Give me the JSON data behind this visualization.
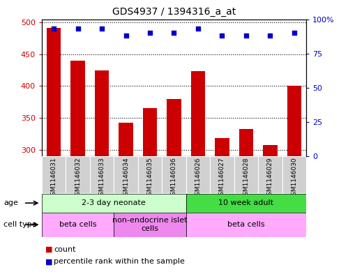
{
  "title": "GDS4937 / 1394316_a_at",
  "samples": [
    "GSM1146031",
    "GSM1146032",
    "GSM1146033",
    "GSM1146034",
    "GSM1146035",
    "GSM1146036",
    "GSM1146026",
    "GSM1146027",
    "GSM1146028",
    "GSM1146029",
    "GSM1146030"
  ],
  "counts": [
    491,
    440,
    425,
    342,
    365,
    380,
    424,
    318,
    333,
    308,
    400
  ],
  "percentiles": [
    93,
    93,
    93,
    88,
    90,
    90,
    93,
    88,
    88,
    88,
    90
  ],
  "ylim_left": [
    290,
    505
  ],
  "ylim_right": [
    0,
    100
  ],
  "yticks_left": [
    300,
    350,
    400,
    450,
    500
  ],
  "yticks_right": [
    0,
    25,
    50,
    75,
    100
  ],
  "bar_color": "#cc0000",
  "scatter_color": "#0000cc",
  "age_groups": [
    {
      "label": "2-3 day neonate",
      "start": 0,
      "end": 6,
      "color": "#ccffcc"
    },
    {
      "label": "10 week adult",
      "start": 6,
      "end": 11,
      "color": "#44dd44"
    }
  ],
  "cell_type_groups": [
    {
      "label": "beta cells",
      "start": 0,
      "end": 3,
      "color": "#ffaaff"
    },
    {
      "label": "non-endocrine islet\ncells",
      "start": 3,
      "end": 6,
      "color": "#ee88ee"
    },
    {
      "label": "beta cells",
      "start": 6,
      "end": 11,
      "color": "#ffaaff"
    }
  ],
  "sample_bg_color": "#d0d0d0",
  "legend_count_label": "count",
  "legend_percentile_label": "percentile rank within the sample",
  "bar_color_legend": "#cc0000",
  "scatter_color_legend": "#0000cc",
  "left_axis_color": "#cc0000",
  "right_axis_color": "#0000cc",
  "plot_bg_color": "#ffffff",
  "fig_bg_color": "#ffffff"
}
